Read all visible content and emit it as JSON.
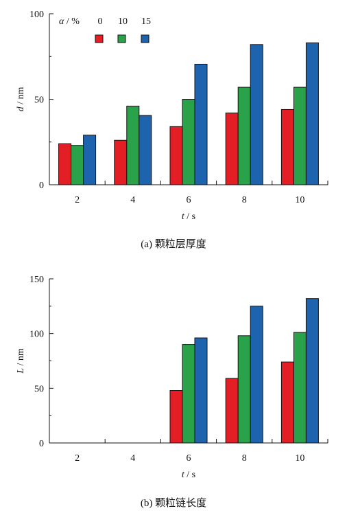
{
  "colors": {
    "s0": "#e31e25",
    "s10": "#2aa24a",
    "s15": "#1e63ae"
  },
  "chart_data": [
    {
      "type": "bar",
      "categories": [
        "2",
        "4",
        "6",
        "8",
        "10"
      ],
      "series": [
        {
          "name": "0",
          "values": [
            24,
            26,
            34,
            42,
            44
          ]
        },
        {
          "name": "10",
          "values": [
            23,
            46,
            50,
            57,
            57
          ]
        },
        {
          "name": "15",
          "values": [
            29,
            40.5,
            70.5,
            82,
            83
          ]
        }
      ],
      "xlabel_var": "t",
      "xlabel_unit": " / s",
      "ylabel_var": "d",
      "ylabel_unit": " / nm",
      "ylim": [
        0,
        100
      ],
      "yticks": [
        "0",
        "50",
        "100"
      ],
      "legend_title_var": "α",
      "legend_title_unit": " / %",
      "legend_position": "top-left",
      "caption": "(a)  颗粒层厚度"
    },
    {
      "type": "bar",
      "categories": [
        "2",
        "4",
        "6",
        "8",
        "10"
      ],
      "series": [
        {
          "name": "0",
          "values": [
            0,
            0,
            48,
            59,
            74
          ]
        },
        {
          "name": "10",
          "values": [
            0,
            0,
            90,
            98,
            101
          ]
        },
        {
          "name": "15",
          "values": [
            0,
            0,
            96,
            125,
            132
          ]
        }
      ],
      "xlabel_var": "t",
      "xlabel_unit": " / s",
      "ylabel_var": "L",
      "ylabel_unit": " / nm",
      "ylim": [
        0,
        150
      ],
      "yticks": [
        "0",
        "50",
        "100",
        "150"
      ],
      "caption": "(b)  颗粒链长度"
    }
  ]
}
